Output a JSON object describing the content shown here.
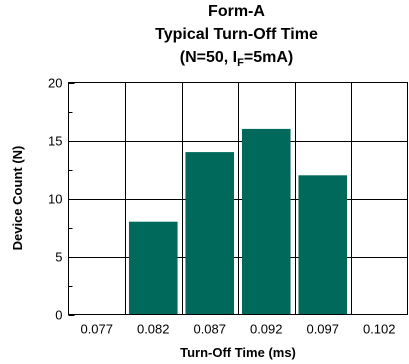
{
  "chart_data": {
    "type": "bar",
    "title": "Form-A",
    "subtitle": "Typical Turn-Off Time",
    "subtitle2_prefix": "(N=50, I",
    "subtitle2_sub": "F",
    "subtitle2_suffix": "=5mA)",
    "xlabel": "Turn-Off Time (ms)",
    "ylabel": "Device Count (N)",
    "xlim": [
      0.0745,
      0.1045
    ],
    "ylim": [
      0,
      20
    ],
    "x_ticks": [
      "0.077",
      "0.082",
      "0.087",
      "0.092",
      "0.097",
      "0.102"
    ],
    "x_tick_values": [
      0.077,
      0.082,
      0.087,
      0.092,
      0.097,
      0.102
    ],
    "y_ticks": [
      "0",
      "5",
      "10",
      "15",
      "20"
    ],
    "y_tick_values": [
      0,
      5,
      10,
      15,
      20
    ],
    "categories": [
      "0.077",
      "0.082",
      "0.087",
      "0.092",
      "0.097",
      "0.102"
    ],
    "values": [
      0,
      8,
      14,
      16,
      12,
      0
    ],
    "bar_color": "#00695c",
    "grid": true
  }
}
